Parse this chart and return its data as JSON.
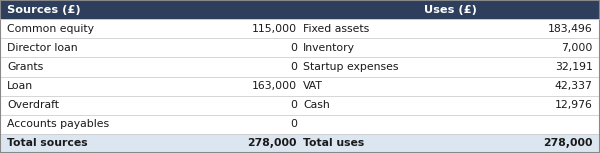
{
  "header_bg": "#2d3f5c",
  "header_text_color": "#ffffff",
  "row_bg": "#ffffff",
  "total_bg": "#dce6f1",
  "outer_border_color": "#888888",
  "inner_border_color": "#cccccc",
  "text_color": "#1a1a1a",
  "header": [
    "Sources (£)",
    "Uses (£)"
  ],
  "rows": [
    [
      "Common equity",
      "115,000",
      "Fixed assets",
      "183,496"
    ],
    [
      "Director loan",
      "0",
      "Inventory",
      "7,000"
    ],
    [
      "Grants",
      "0",
      "Startup expenses",
      "32,191"
    ],
    [
      "Loan",
      "163,000",
      "VAT",
      "42,337"
    ],
    [
      "Overdraft",
      "0",
      "Cash",
      "12,976"
    ],
    [
      "Accounts payables",
      "0",
      "",
      ""
    ],
    [
      "Total sources",
      "278,000",
      "Total uses",
      "278,000"
    ]
  ],
  "c0": 0.012,
  "c1": 0.495,
  "c2": 0.505,
  "c3": 0.988,
  "mid": 0.5,
  "figsize": [
    6.0,
    1.53
  ],
  "dpi": 100,
  "font_size": 7.8,
  "header_font_size": 8.2
}
